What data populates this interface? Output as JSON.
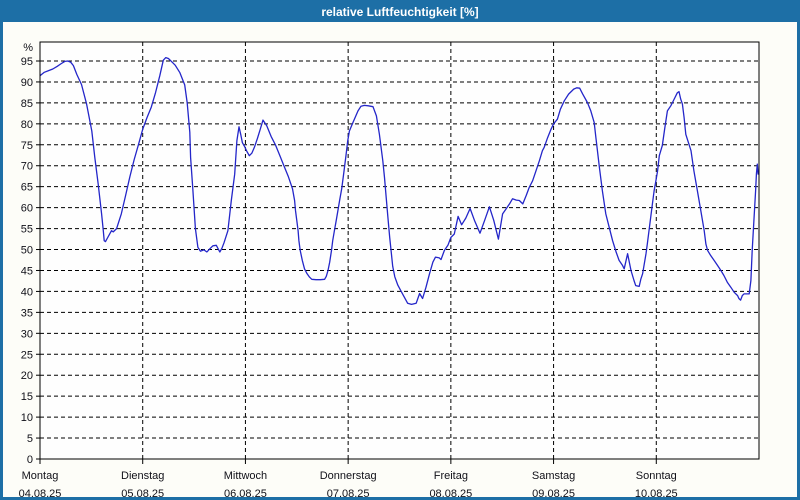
{
  "window": {
    "title": "relative Luftfeuchtigkeit [%]"
  },
  "chart_data": {
    "type": "line",
    "title": "relative Luftfeuchtigkeit [%]",
    "ylabel": "%",
    "ylim": [
      0,
      100
    ],
    "y_ticks": [
      0,
      5,
      10,
      15,
      20,
      25,
      30,
      35,
      40,
      45,
      50,
      55,
      60,
      65,
      70,
      75,
      80,
      85,
      90,
      95
    ],
    "y_unit_label": "%",
    "grid": true,
    "legend_position": "none",
    "x_axis": {
      "days": [
        {
          "name": "Montag",
          "date": "04.08.25"
        },
        {
          "name": "Dienstag",
          "date": "05.08.25"
        },
        {
          "name": "Mittwoch",
          "date": "06.08.25"
        },
        {
          "name": "Donnerstag",
          "date": "07.08.25"
        },
        {
          "name": "Freitag",
          "date": "08.08.25"
        },
        {
          "name": "Samstag",
          "date": "09.08.25"
        },
        {
          "name": "Sonntag",
          "date": "10.08.25"
        }
      ],
      "hours_total": 168,
      "hours_per_day": 24
    },
    "colors": {
      "titlebar": "#1d6fa6",
      "window_border": "#1d6fa6",
      "window_bg": "#fdfdf8",
      "plot_bg": "#fefefe",
      "grid": "#000000",
      "axis": "#000000",
      "label": "#101018",
      "line": "#2426c9"
    },
    "series": [
      {
        "name": "relative Luftfeuchtigkeit",
        "unit": "%",
        "color": "#2426c9",
        "points": [
          [
            0,
            91.5
          ],
          [
            1,
            92.3
          ],
          [
            2,
            92.7
          ],
          [
            3,
            93.1
          ],
          [
            4,
            93.7
          ],
          [
            5,
            94.4
          ],
          [
            5.8,
            94.9
          ],
          [
            6.5,
            95
          ],
          [
            7.2,
            94.7
          ],
          [
            7.8,
            93.9
          ],
          [
            8.6,
            91.8
          ],
          [
            9.7,
            89.4
          ],
          [
            10.9,
            84.7
          ],
          [
            12.1,
            78.3
          ],
          [
            12.8,
            72
          ],
          [
            13.6,
            65.6
          ],
          [
            14.4,
            58.5
          ],
          [
            14.8,
            54.5
          ],
          [
            15,
            52.1
          ],
          [
            15.3,
            51.9
          ],
          [
            15.9,
            53
          ],
          [
            16.7,
            54.5
          ],
          [
            17.1,
            54.2
          ],
          [
            17.9,
            55
          ],
          [
            19,
            58.5
          ],
          [
            20,
            62.9
          ],
          [
            21,
            67.4
          ],
          [
            22,
            71.5
          ],
          [
            23,
            75
          ],
          [
            24,
            78.7
          ],
          [
            25,
            81.5
          ],
          [
            26,
            84
          ],
          [
            27,
            87.5
          ],
          [
            28,
            91.5
          ],
          [
            28.8,
            95.2
          ],
          [
            29.4,
            95.8
          ],
          [
            30,
            95.6
          ],
          [
            30.8,
            94.8
          ],
          [
            31.6,
            94
          ],
          [
            32.7,
            92.2
          ],
          [
            33.8,
            89.3
          ],
          [
            34.4,
            85
          ],
          [
            35,
            78
          ],
          [
            35.2,
            72
          ],
          [
            35.7,
            64.5
          ],
          [
            36.3,
            55
          ],
          [
            36.9,
            50.5
          ],
          [
            37.5,
            49.6
          ],
          [
            38.3,
            49.9
          ],
          [
            39,
            49.4
          ],
          [
            39.7,
            50.2
          ],
          [
            40.4,
            50.9
          ],
          [
            41.2,
            51
          ],
          [
            42,
            49.4
          ],
          [
            42.5,
            50.3
          ],
          [
            43,
            51.6
          ],
          [
            43.9,
            54.5
          ],
          [
            44.7,
            61.7
          ],
          [
            45.5,
            68
          ],
          [
            46,
            76
          ],
          [
            46.5,
            79.3
          ],
          [
            46.9,
            77.5
          ],
          [
            47.3,
            75.5
          ],
          [
            47.8,
            74.6
          ],
          [
            48.3,
            73.5
          ],
          [
            48.9,
            72.4
          ],
          [
            49.5,
            73
          ],
          [
            50.1,
            74.4
          ],
          [
            50.8,
            76.5
          ],
          [
            51.4,
            78.5
          ],
          [
            52.1,
            80.9
          ],
          [
            53,
            79.5
          ],
          [
            54,
            77
          ],
          [
            55,
            75
          ],
          [
            56,
            72.5
          ],
          [
            57,
            70
          ],
          [
            58,
            67.5
          ],
          [
            59,
            64.5
          ],
          [
            59.5,
            61.7
          ],
          [
            59.7,
            59.3
          ],
          [
            60,
            56.9
          ],
          [
            60.3,
            54.5
          ],
          [
            60.5,
            52.1
          ],
          [
            60.8,
            49.8
          ],
          [
            61.3,
            47.4
          ],
          [
            61.8,
            45.4
          ],
          [
            62.4,
            44.2
          ],
          [
            63,
            43.4
          ],
          [
            63.5,
            42.9
          ],
          [
            64.5,
            42.8
          ],
          [
            65.5,
            42.8
          ],
          [
            66.5,
            42.9
          ],
          [
            66.9,
            43.6
          ],
          [
            67.3,
            45
          ],
          [
            67.7,
            47
          ],
          [
            68.1,
            49.8
          ],
          [
            68.4,
            52.1
          ],
          [
            68.8,
            54.5
          ],
          [
            69.2,
            56.9
          ],
          [
            69.6,
            59.3
          ],
          [
            70,
            61.7
          ],
          [
            70.5,
            64.5
          ],
          [
            71,
            68.5
          ],
          [
            71.5,
            72.5
          ],
          [
            71.9,
            75.9
          ],
          [
            72.3,
            78.3
          ],
          [
            73.1,
            80.3
          ],
          [
            74.3,
            83.1
          ],
          [
            75,
            84.2
          ],
          [
            75.8,
            84.4
          ],
          [
            76.7,
            84.3
          ],
          [
            77.8,
            84.1
          ],
          [
            78.6,
            81.9
          ],
          [
            79.3,
            77.5
          ],
          [
            80.1,
            71.2
          ],
          [
            80.5,
            67.2
          ],
          [
            80.9,
            62.4
          ],
          [
            81.3,
            57.7
          ],
          [
            81.7,
            52.9
          ],
          [
            82.1,
            49
          ],
          [
            82.4,
            46
          ],
          [
            82.9,
            43.5
          ],
          [
            83.6,
            41.5
          ],
          [
            84.4,
            40
          ],
          [
            85.2,
            38.5
          ],
          [
            85.9,
            37.2
          ],
          [
            86.8,
            36.9
          ],
          [
            87.9,
            37.2
          ],
          [
            88.7,
            39.5
          ],
          [
            89.4,
            38.3
          ],
          [
            90.2,
            41
          ],
          [
            91,
            44.2
          ],
          [
            91.8,
            47
          ],
          [
            92.4,
            48.2
          ],
          [
            93.3,
            48
          ],
          [
            93.7,
            47.6
          ],
          [
            94.5,
            49.8
          ],
          [
            95.3,
            51
          ],
          [
            96,
            52.9
          ],
          [
            96.8,
            53.7
          ],
          [
            97.7,
            57.9
          ],
          [
            98.5,
            55.9
          ],
          [
            99.5,
            57.5
          ],
          [
            100.5,
            59.8
          ],
          [
            101.5,
            57
          ],
          [
            102.8,
            53.9
          ],
          [
            103.9,
            57
          ],
          [
            105,
            60.2
          ],
          [
            106,
            57
          ],
          [
            107.1,
            52.5
          ],
          [
            108.1,
            58.5
          ],
          [
            108.9,
            59.7
          ],
          [
            109.7,
            60.9
          ],
          [
            110.4,
            62.1
          ],
          [
            111.3,
            61.8
          ],
          [
            112,
            61.7
          ],
          [
            112.8,
            60.9
          ],
          [
            113.6,
            62.9
          ],
          [
            114.3,
            64.8
          ],
          [
            115.1,
            66.4
          ],
          [
            115.9,
            68.8
          ],
          [
            116.7,
            71.2
          ],
          [
            117.4,
            73.6
          ],
          [
            117.8,
            74.4
          ],
          [
            118.6,
            76.7
          ],
          [
            119.4,
            78.7
          ],
          [
            120,
            80
          ],
          [
            120.9,
            81.1
          ],
          [
            121.6,
            83.5
          ],
          [
            122.5,
            85.5
          ],
          [
            123.5,
            87.1
          ],
          [
            124.7,
            88.3
          ],
          [
            125.4,
            88.6
          ],
          [
            126.1,
            88.5
          ],
          [
            126.8,
            87.1
          ],
          [
            127.9,
            85.1
          ],
          [
            128.7,
            83.1
          ],
          [
            129.5,
            80.3
          ],
          [
            129.9,
            76.7
          ],
          [
            130.7,
            69.6
          ],
          [
            131.4,
            64
          ],
          [
            132.2,
            58.5
          ],
          [
            133,
            55.3
          ],
          [
            133.8,
            52.1
          ],
          [
            134.6,
            49.4
          ],
          [
            135.3,
            47.4
          ],
          [
            136.1,
            46.2
          ],
          [
            136.5,
            45.4
          ],
          [
            137.3,
            49
          ],
          [
            138.1,
            45
          ],
          [
            138.8,
            42.6
          ],
          [
            139.2,
            41.4
          ],
          [
            140,
            41.2
          ],
          [
            140.4,
            43
          ],
          [
            140.8,
            44.2
          ],
          [
            141.6,
            49
          ],
          [
            141.9,
            51.3
          ],
          [
            142.3,
            54.5
          ],
          [
            142.7,
            57.7
          ],
          [
            143.1,
            60.9
          ],
          [
            143.5,
            64
          ],
          [
            143.9,
            66.4
          ],
          [
            144.3,
            68.8
          ],
          [
            144.7,
            72.4
          ],
          [
            145.4,
            74.8
          ],
          [
            146,
            79
          ],
          [
            146.6,
            83.1
          ],
          [
            147.4,
            84.3
          ],
          [
            147.8,
            85.1
          ],
          [
            148.9,
            87.4
          ],
          [
            149.3,
            87.7
          ],
          [
            149.7,
            85.9
          ],
          [
            150.1,
            84.7
          ],
          [
            150.5,
            81.5
          ],
          [
            150.9,
            77.5
          ],
          [
            152.1,
            73.6
          ],
          [
            152.8,
            68.8
          ],
          [
            153.6,
            64
          ],
          [
            154.4,
            59.3
          ],
          [
            155.2,
            54.5
          ],
          [
            155.6,
            51.3
          ],
          [
            156,
            49.8
          ],
          [
            156.7,
            48.6
          ],
          [
            157.5,
            47.4
          ],
          [
            158.3,
            46.2
          ],
          [
            159.1,
            45
          ],
          [
            159.8,
            43.8
          ],
          [
            160.6,
            42.2
          ],
          [
            161.4,
            41
          ],
          [
            162.2,
            39.8
          ],
          [
            163,
            39
          ],
          [
            163.3,
            38.3
          ],
          [
            163.7,
            37.9
          ],
          [
            164.1,
            39
          ],
          [
            164.5,
            39.4
          ],
          [
            165.7,
            39.4
          ],
          [
            166.1,
            42.6
          ],
          [
            166.4,
            49.8
          ],
          [
            166.8,
            56.9
          ],
          [
            167.2,
            64
          ],
          [
            167.4,
            68
          ],
          [
            167.6,
            70.4
          ],
          [
            167.8,
            68
          ]
        ]
      }
    ]
  }
}
